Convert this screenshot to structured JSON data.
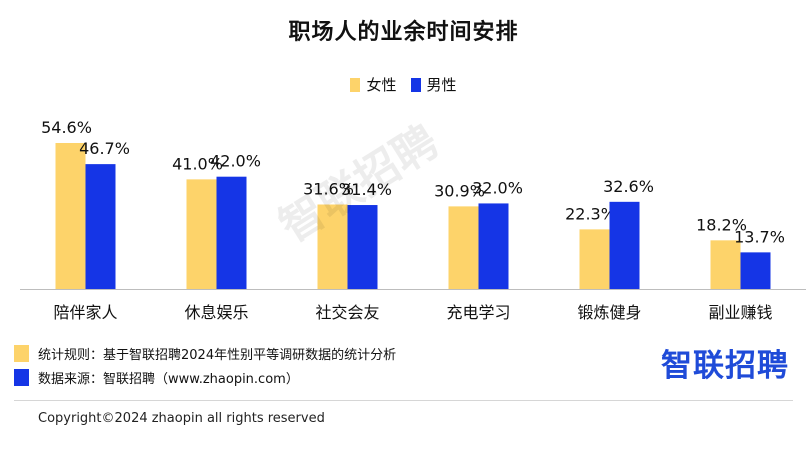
{
  "title": "职场人的业余时间安排",
  "legend": [
    {
      "label": "女性",
      "color": "#FDD36A"
    },
    {
      "label": "男性",
      "color": "#1535E6"
    }
  ],
  "chart_data": {
    "type": "bar",
    "title": "职场人的业余时间安排",
    "categories": [
      "陪伴家人",
      "休息娱乐",
      "社交会友",
      "充电学习",
      "锻炼健身",
      "副业赚钱"
    ],
    "series": [
      {
        "name": "女性",
        "color": "#FDD36A",
        "values": [
          54.6,
          41.0,
          31.6,
          30.9,
          22.3,
          18.2
        ]
      },
      {
        "name": "男性",
        "color": "#1535E6",
        "values": [
          46.7,
          42.0,
          31.4,
          32.0,
          32.6,
          13.7
        ]
      }
    ],
    "value_suffix": "%",
    "ylim": [
      0,
      60
    ],
    "grid": false,
    "legend_position": "top-center"
  },
  "watermark": "智联招聘",
  "notes": [
    {
      "text": "统计规则：基于智联招聘2024年性别平等调研数据的统计分析",
      "color": "#FDD36A"
    },
    {
      "text": "数据来源：智联招聘（www.zhaopin.com）",
      "color": "#1535E6"
    }
  ],
  "brand": "智联招聘",
  "copyright": "Copyright©2024 zhaopin all rights reserved"
}
